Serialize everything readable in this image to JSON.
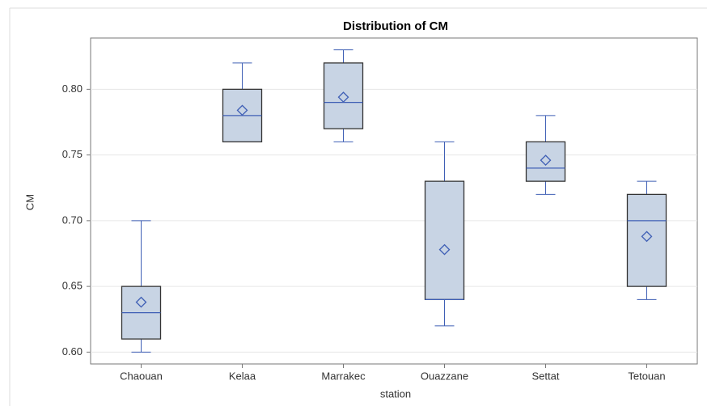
{
  "chart_data": {
    "type": "box",
    "title": "Distribution of CM",
    "x_label": "station",
    "y_label": "CM",
    "categories": [
      "Chaouan",
      "Kelaa",
      "Marrakec",
      "Ouazzane",
      "Settat",
      "Tetouan"
    ],
    "min": [
      0.6,
      0.76,
      0.76,
      0.62,
      0.72,
      0.64
    ],
    "q1": [
      0.61,
      0.76,
      0.77,
      0.64,
      0.73,
      0.65
    ],
    "median": [
      0.63,
      0.78,
      0.79,
      0.64,
      0.74,
      0.7
    ],
    "q3": [
      0.65,
      0.8,
      0.82,
      0.73,
      0.76,
      0.72
    ],
    "max": [
      0.7,
      0.82,
      0.83,
      0.76,
      0.78,
      0.73
    ],
    "mean": [
      0.638,
      0.784,
      0.794,
      0.678,
      0.746,
      0.688
    ],
    "color": "#c8d4e4",
    "line_color": "#3f5fb5",
    "ylim": [
      0.591,
      0.839
    ],
    "yticks": [
      {
        "value": 0.6,
        "label": "0.60"
      },
      {
        "value": 0.65,
        "label": "0.65"
      },
      {
        "value": 0.7,
        "label": "0.70"
      },
      {
        "value": 0.75,
        "label": "0.75"
      },
      {
        "value": 0.8,
        "label": "0.80"
      }
    ],
    "grid": true
  }
}
